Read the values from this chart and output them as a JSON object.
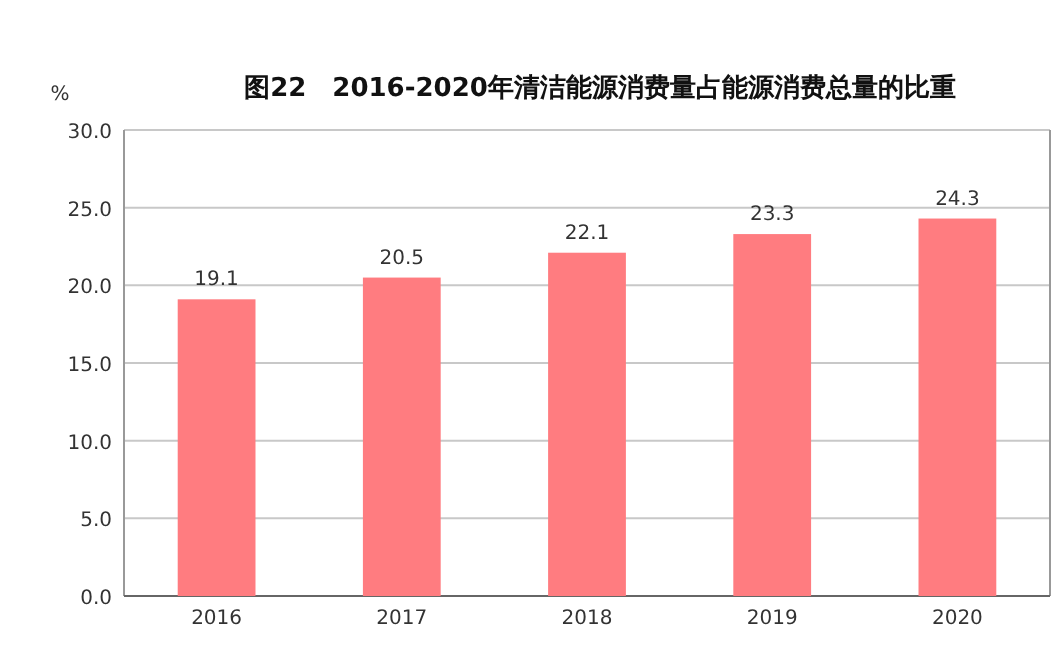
{
  "chart_data": {
    "type": "bar",
    "title": "图22　2016-2020年清洁能源消费量占能源消费总量的比重",
    "ylabel": "%",
    "categories": [
      "2016",
      "2017",
      "2018",
      "2019",
      "2020"
    ],
    "values": [
      19.1,
      20.5,
      22.1,
      23.3,
      24.3
    ],
    "color": "#ff7c80",
    "ylim": [
      0,
      30
    ],
    "yticks": [
      {
        "value": 0,
        "label": "0.0"
      },
      {
        "value": 5,
        "label": "5.0"
      },
      {
        "value": 10,
        "label": "10.0"
      },
      {
        "value": 15,
        "label": "15.0"
      },
      {
        "value": 20,
        "label": "20.0"
      },
      {
        "value": 25,
        "label": "25.0"
      },
      {
        "value": 30,
        "label": "30.0"
      }
    ],
    "grid": "y",
    "data_labels": true
  }
}
